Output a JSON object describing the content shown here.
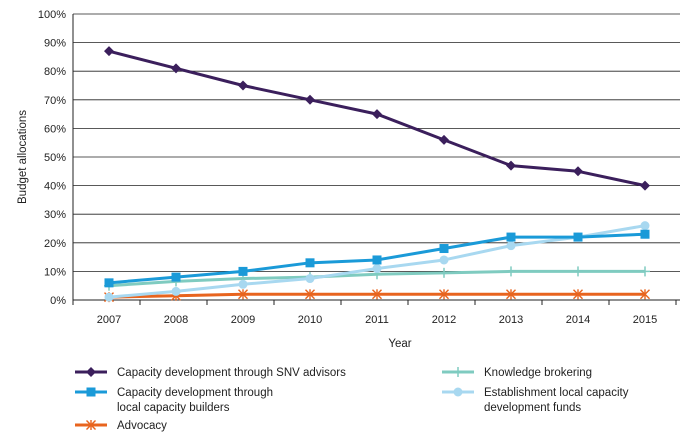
{
  "chart_data": {
    "type": "line",
    "title": "",
    "xlabel": "Year",
    "ylabel": "Budget allocations",
    "categories": [
      "2007",
      "2008",
      "2009",
      "2010",
      "2011",
      "2012",
      "2013",
      "2014",
      "2015"
    ],
    "ylim": [
      0,
      100
    ],
    "y_ticks": [
      "0%",
      "10%",
      "20%",
      "30%",
      "40%",
      "50%",
      "60%",
      "70%",
      "80%",
      "90%",
      "100%"
    ],
    "grid": true,
    "legend_position": "bottom",
    "series": [
      {
        "name": "Capacity development through SNV advisors",
        "color": "#3b1f5c",
        "marker": "diamond",
        "values": [
          87,
          81,
          75,
          70,
          65,
          56,
          47,
          45,
          40
        ]
      },
      {
        "name": "Capacity development through local capacity builders",
        "color": "#1a9ad8",
        "marker": "square",
        "values": [
          6,
          8,
          10,
          13,
          14,
          18,
          22,
          22,
          23
        ]
      },
      {
        "name": "Advocacy",
        "color": "#e8641e",
        "marker": "asterisk",
        "values": [
          1,
          1.5,
          2,
          2,
          2,
          2,
          2,
          2,
          2
        ]
      },
      {
        "name": "Knowledge brokering",
        "color": "#7fcbc0",
        "marker": "plus",
        "values": [
          5,
          6.5,
          7.5,
          8,
          9,
          9.5,
          10,
          10,
          10
        ]
      },
      {
        "name": "Establishment local capacity development funds",
        "color": "#a8d8f0",
        "marker": "circle",
        "values": [
          1,
          3,
          5.5,
          7.5,
          11,
          14,
          19,
          22,
          26
        ]
      }
    ]
  }
}
